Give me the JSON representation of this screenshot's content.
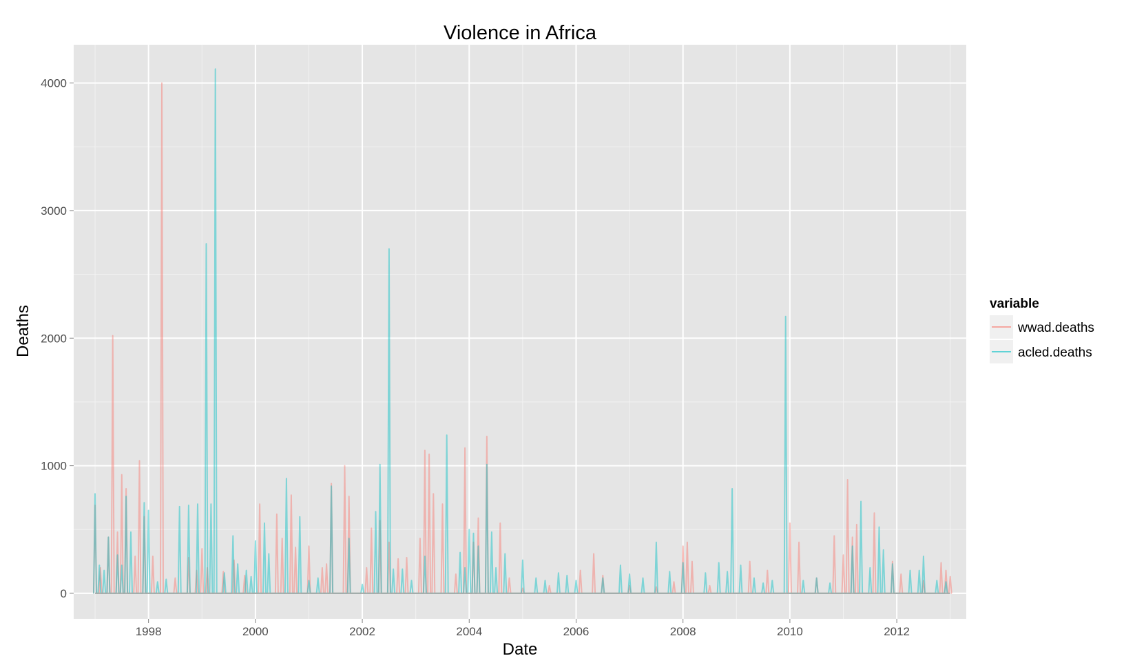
{
  "chart_data": {
    "type": "line",
    "title": "Violence in Africa",
    "xlabel": "Date",
    "ylabel": "Deaths",
    "xlim": [
      1996.6,
      2013.3
    ],
    "ylim": [
      -200,
      4300
    ],
    "x_ticks": [
      1998,
      2000,
      2002,
      2004,
      2006,
      2008,
      2010,
      2012
    ],
    "y_ticks": [
      0,
      1000,
      2000,
      3000,
      4000
    ],
    "grid": true,
    "legend": {
      "title": "variable",
      "placement": "right"
    },
    "series": [
      {
        "name": "wwad.deaths",
        "color": "#F8766D",
        "peaks": [
          [
            1997.0,
            690
          ],
          [
            1997.1,
            200
          ],
          [
            1997.25,
            440
          ],
          [
            1997.33,
            2020
          ],
          [
            1997.42,
            480
          ],
          [
            1997.5,
            930
          ],
          [
            1997.58,
            820
          ],
          [
            1997.75,
            290
          ],
          [
            1997.83,
            1040
          ],
          [
            1997.92,
            600
          ],
          [
            1998.08,
            290
          ],
          [
            1998.25,
            4000
          ],
          [
            1998.5,
            120
          ],
          [
            1998.75,
            280
          ],
          [
            1998.9,
            180
          ],
          [
            1999.0,
            350
          ],
          [
            1999.1,
            200
          ],
          [
            1999.4,
            170
          ],
          [
            1999.6,
            260
          ],
          [
            1999.8,
            140
          ],
          [
            2000.08,
            700
          ],
          [
            2000.4,
            620
          ],
          [
            2000.5,
            430
          ],
          [
            2000.67,
            770
          ],
          [
            2000.75,
            360
          ],
          [
            2001.0,
            370
          ],
          [
            2001.25,
            200
          ],
          [
            2001.33,
            230
          ],
          [
            2001.42,
            860
          ],
          [
            2001.67,
            1000
          ],
          [
            2001.75,
            760
          ],
          [
            2002.08,
            200
          ],
          [
            2002.17,
            510
          ],
          [
            2002.33,
            570
          ],
          [
            2002.5,
            400
          ],
          [
            2002.67,
            270
          ],
          [
            2002.83,
            280
          ],
          [
            2003.08,
            430
          ],
          [
            2003.17,
            1120
          ],
          [
            2003.25,
            1090
          ],
          [
            2003.33,
            780
          ],
          [
            2003.5,
            700
          ],
          [
            2003.75,
            150
          ],
          [
            2003.92,
            1140
          ],
          [
            2004.08,
            400
          ],
          [
            2004.17,
            590
          ],
          [
            2004.33,
            1230
          ],
          [
            2004.58,
            550
          ],
          [
            2004.75,
            120
          ],
          [
            2005.0,
            40
          ],
          [
            2005.5,
            60
          ],
          [
            2006.08,
            180
          ],
          [
            2006.33,
            310
          ],
          [
            2006.5,
            140
          ],
          [
            2007.0,
            60
          ],
          [
            2007.5,
            50
          ],
          [
            2007.83,
            90
          ],
          [
            2008.0,
            370
          ],
          [
            2008.08,
            400
          ],
          [
            2008.17,
            250
          ],
          [
            2008.5,
            60
          ],
          [
            2009.25,
            250
          ],
          [
            2009.58,
            180
          ],
          [
            2010.0,
            550
          ],
          [
            2010.17,
            400
          ],
          [
            2010.5,
            120
          ],
          [
            2010.83,
            450
          ],
          [
            2011.0,
            300
          ],
          [
            2011.08,
            890
          ],
          [
            2011.17,
            440
          ],
          [
            2011.25,
            540
          ],
          [
            2011.58,
            630
          ],
          [
            2011.92,
            250
          ],
          [
            2012.08,
            150
          ],
          [
            2012.5,
            100
          ],
          [
            2012.83,
            240
          ],
          [
            2012.92,
            180
          ],
          [
            2013.0,
            130
          ]
        ]
      },
      {
        "name": "acled.deaths",
        "color": "#00BFC4",
        "peaks": [
          [
            1997.0,
            780
          ],
          [
            1997.08,
            220
          ],
          [
            1997.17,
            180
          ],
          [
            1997.25,
            440
          ],
          [
            1997.42,
            300
          ],
          [
            1997.5,
            220
          ],
          [
            1997.58,
            760
          ],
          [
            1997.67,
            480
          ],
          [
            1997.92,
            710
          ],
          [
            1998.0,
            650
          ],
          [
            1998.17,
            90
          ],
          [
            1998.33,
            110
          ],
          [
            1998.58,
            680
          ],
          [
            1998.75,
            690
          ],
          [
            1998.92,
            700
          ],
          [
            1999.08,
            2740
          ],
          [
            1999.17,
            700
          ],
          [
            1999.25,
            4110
          ],
          [
            1999.42,
            160
          ],
          [
            1999.58,
            450
          ],
          [
            1999.67,
            230
          ],
          [
            1999.83,
            180
          ],
          [
            1999.92,
            130
          ],
          [
            2000.0,
            410
          ],
          [
            2000.17,
            550
          ],
          [
            2000.25,
            310
          ],
          [
            2000.58,
            900
          ],
          [
            2000.83,
            600
          ],
          [
            2001.0,
            100
          ],
          [
            2001.17,
            120
          ],
          [
            2001.42,
            840
          ],
          [
            2001.75,
            430
          ],
          [
            2002.0,
            70
          ],
          [
            2002.25,
            640
          ],
          [
            2002.33,
            1010
          ],
          [
            2002.5,
            2700
          ],
          [
            2002.58,
            190
          ],
          [
            2002.75,
            190
          ],
          [
            2002.92,
            100
          ],
          [
            2003.17,
            290
          ],
          [
            2003.58,
            1240
          ],
          [
            2003.83,
            320
          ],
          [
            2003.92,
            200
          ],
          [
            2004.0,
            500
          ],
          [
            2004.08,
            470
          ],
          [
            2004.17,
            370
          ],
          [
            2004.33,
            1010
          ],
          [
            2004.42,
            480
          ],
          [
            2004.5,
            200
          ],
          [
            2004.67,
            310
          ],
          [
            2005.0,
            260
          ],
          [
            2005.25,
            120
          ],
          [
            2005.42,
            100
          ],
          [
            2005.67,
            160
          ],
          [
            2005.83,
            140
          ],
          [
            2006.0,
            100
          ],
          [
            2006.5,
            120
          ],
          [
            2006.83,
            220
          ],
          [
            2007.0,
            150
          ],
          [
            2007.25,
            120
          ],
          [
            2007.5,
            400
          ],
          [
            2007.75,
            170
          ],
          [
            2008.0,
            240
          ],
          [
            2008.42,
            160
          ],
          [
            2008.67,
            240
          ],
          [
            2008.83,
            170
          ],
          [
            2008.92,
            820
          ],
          [
            2009.08,
            220
          ],
          [
            2009.33,
            120
          ],
          [
            2009.5,
            80
          ],
          [
            2009.67,
            100
          ],
          [
            2009.92,
            2170
          ],
          [
            2010.25,
            100
          ],
          [
            2010.5,
            120
          ],
          [
            2010.75,
            80
          ],
          [
            2011.17,
            370
          ],
          [
            2011.33,
            720
          ],
          [
            2011.5,
            200
          ],
          [
            2011.67,
            520
          ],
          [
            2011.75,
            340
          ],
          [
            2011.92,
            230
          ],
          [
            2012.25,
            180
          ],
          [
            2012.42,
            180
          ],
          [
            2012.5,
            290
          ],
          [
            2012.75,
            100
          ],
          [
            2012.92,
            90
          ]
        ]
      }
    ],
    "overlap_color": "#a3aba9"
  }
}
